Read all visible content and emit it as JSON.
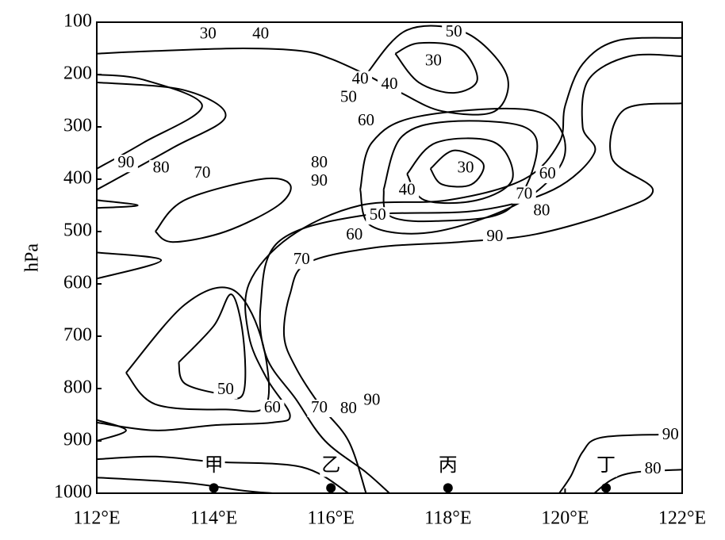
{
  "chart_data": {
    "type": "contour",
    "ylabel": "hPa",
    "xlim": [
      112,
      122
    ],
    "xticks": [
      {
        "value": 112,
        "label": "112°E"
      },
      {
        "value": 114,
        "label": "114°E"
      },
      {
        "value": 116,
        "label": "116°E"
      },
      {
        "value": 118,
        "label": "118°E"
      },
      {
        "value": 120,
        "label": "120°E"
      },
      {
        "value": 122,
        "label": "122°E"
      }
    ],
    "ylim": [
      1000,
      100
    ],
    "yticks": [
      100,
      200,
      300,
      400,
      500,
      600,
      700,
      800,
      900,
      1000
    ],
    "color": "#000000",
    "contours": [
      {
        "x": [
          122,
          121.6,
          120.6,
          120.3,
          120.1,
          119.9
        ],
        "y": [
          890,
          888,
          894,
          921,
          967,
          1000
        ]
      },
      {
        "x": [
          122,
          121.2,
          120.8,
          120.5
        ],
        "y": [
          955,
          960,
          974,
          1000
        ]
      },
      {
        "x": [
          122,
          121,
          120.8,
          121.5,
          120.9,
          119.5,
          118.2,
          116.8,
          115.6,
          115.3,
          115.2,
          115.4,
          115.8,
          116.3,
          116.6
        ],
        "y": [
          255,
          268,
          360,
          420,
          460,
          505,
          520,
          530,
          560,
          620,
          700,
          760,
          830,
          900,
          1000
        ]
      },
      {
        "x": [
          122,
          121.1,
          120.4,
          120.3,
          120.5,
          119.8,
          118.5,
          116.5,
          115.1,
          114.8,
          114.9,
          115.4,
          115.9,
          116.6,
          117.0
        ],
        "y": [
          165,
          165,
          210,
          300,
          350,
          420,
          460,
          470,
          520,
          640,
          740,
          820,
          900,
          960,
          1000
        ]
      },
      {
        "x": [
          122,
          120.9,
          120.3,
          120.0,
          119.9,
          119.3,
          118.0,
          116.5,
          115.3,
          114.6,
          114.6,
          114.9,
          115.3,
          115.0,
          114.0,
          113.0,
          112
        ],
        "y": [
          130,
          135,
          180,
          260,
          330,
          400,
          440,
          450,
          510,
          600,
          700,
          780,
          850,
          865,
          870,
          880,
          865
        ]
      },
      {
        "x": [
          117.1,
          117.5,
          118.2,
          118.5,
          118.1,
          117.5,
          117.1
        ],
        "y": [
          160,
          140,
          150,
          210,
          235,
          215,
          160
        ]
      },
      {
        "x": [
          116.6,
          117.3,
          118.3,
          119.0,
          118.8,
          117.9,
          117.2,
          116.6
        ],
        "y": [
          200,
          115,
          120,
          200,
          270,
          270,
          235,
          200
        ]
      },
      {
        "x": [
          117.7,
          118.1,
          118.6,
          118.4,
          117.9,
          117.7
        ],
        "y": [
          380,
          345,
          370,
          410,
          410,
          380
        ]
      },
      {
        "x": [
          117.3,
          117.8,
          118.8,
          119.1,
          118.5,
          117.6,
          117.3
        ],
        "y": [
          390,
          330,
          330,
          400,
          440,
          440,
          390
        ]
      },
      {
        "x": [
          116.9,
          117.2,
          118.0,
          119.3,
          119.5,
          119.0,
          117.8,
          117.0,
          116.9
        ],
        "y": [
          420,
          320,
          290,
          300,
          360,
          460,
          480,
          470,
          420
        ]
      },
      {
        "x": [
          116.5,
          116.7,
          117.5,
          119.5,
          120.0,
          119.3,
          117.8,
          116.7,
          116.5
        ],
        "y": [
          420,
          330,
          280,
          270,
          350,
          440,
          500,
          490,
          420
        ]
      },
      {
        "x": [
          113.4,
          114.0,
          114.3,
          114.5,
          114.5,
          114.1,
          113.5,
          113.4
        ],
        "y": [
          750,
          680,
          620,
          700,
          810,
          810,
          790,
          750
        ]
      },
      {
        "x": [
          112.5,
          113.5,
          114.3,
          114.8,
          114.9,
          114.2,
          113.0,
          112.5
        ],
        "y": [
          770,
          640,
          610,
          700,
          830,
          840,
          830,
          770
        ]
      },
      {
        "x": [
          112,
          113,
          114.5,
          115.5,
          116,
          116.6
        ],
        "y": [
          160,
          155,
          150,
          155,
          170,
          200
        ]
      },
      {
        "x": [
          112,
          112.8,
          113.8,
          112.8,
          112
        ],
        "y": [
          380,
          330,
          260,
          210,
          200
        ]
      },
      {
        "x": [
          112,
          113.3,
          114.2,
          113.5,
          112
        ],
        "y": [
          420,
          340,
          280,
          230,
          215
        ]
      },
      {
        "x": [
          112,
          112.7,
          112
        ],
        "y": [
          440,
          450,
          455
        ]
      },
      {
        "x": [
          112,
          113.1,
          112
        ],
        "y": [
          540,
          555,
          590
        ]
      },
      {
        "x": [
          113,
          113.5,
          114.8,
          115.3,
          115.1,
          114.2,
          113.3,
          113
        ],
        "y": [
          500,
          440,
          400,
          410,
          450,
          500,
          520,
          500
        ]
      },
      {
        "x": [
          112,
          113,
          114,
          115.5,
          116.3
        ],
        "y": [
          935,
          930,
          940,
          950,
          1000
        ]
      },
      {
        "x": [
          112,
          113.5,
          114.5,
          115
        ],
        "y": [
          970,
          980,
          995,
          1000
        ]
      },
      {
        "x": [
          112,
          112.5,
          112
        ],
        "y": [
          860,
          880,
          900
        ]
      }
    ],
    "labels": [
      {
        "level": 30,
        "x": 113.9,
        "y": 124
      },
      {
        "level": 40,
        "x": 114.8,
        "y": 124
      },
      {
        "level": 50,
        "x": 118.1,
        "y": 120
      },
      {
        "level": 30,
        "x": 117.75,
        "y": 175
      },
      {
        "level": 40,
        "x": 116.5,
        "y": 210
      },
      {
        "level": 40,
        "x": 117.0,
        "y": 220
      },
      {
        "level": 50,
        "x": 116.3,
        "y": 245
      },
      {
        "level": 60,
        "x": 116.6,
        "y": 290
      },
      {
        "level": 30,
        "x": 118.3,
        "y": 380
      },
      {
        "level": 40,
        "x": 117.3,
        "y": 422
      },
      {
        "level": 50,
        "x": 116.8,
        "y": 470
      },
      {
        "level": 60,
        "x": 116.4,
        "y": 508
      },
      {
        "level": 60,
        "x": 119.7,
        "y": 391
      },
      {
        "level": 70,
        "x": 119.3,
        "y": 430
      },
      {
        "level": 80,
        "x": 119.6,
        "y": 462
      },
      {
        "level": 90,
        "x": 118.8,
        "y": 511
      },
      {
        "level": 90,
        "x": 112.5,
        "y": 370
      },
      {
        "level": 80,
        "x": 113.1,
        "y": 380
      },
      {
        "level": 70,
        "x": 113.8,
        "y": 390
      },
      {
        "level": 80,
        "x": 115.8,
        "y": 370
      },
      {
        "level": 90,
        "x": 115.8,
        "y": 405
      },
      {
        "level": 70,
        "x": 115.5,
        "y": 555
      },
      {
        "level": 50,
        "x": 114.2,
        "y": 803
      },
      {
        "level": 60,
        "x": 115.0,
        "y": 838
      },
      {
        "level": 70,
        "x": 115.8,
        "y": 838
      },
      {
        "level": 80,
        "x": 116.3,
        "y": 840
      },
      {
        "level": 90,
        "x": 116.7,
        "y": 824
      },
      {
        "level": 90,
        "x": 121.8,
        "y": 890
      },
      {
        "level": 80,
        "x": 121.5,
        "y": 955
      }
    ],
    "stations": [
      {
        "name": "甲",
        "x": 114,
        "y": 990
      },
      {
        "name": "乙",
        "x": 116,
        "y": 990
      },
      {
        "name": "丙",
        "x": 118,
        "y": 990
      },
      {
        "name": "丁",
        "x": 120.7,
        "y": 990
      }
    ]
  }
}
